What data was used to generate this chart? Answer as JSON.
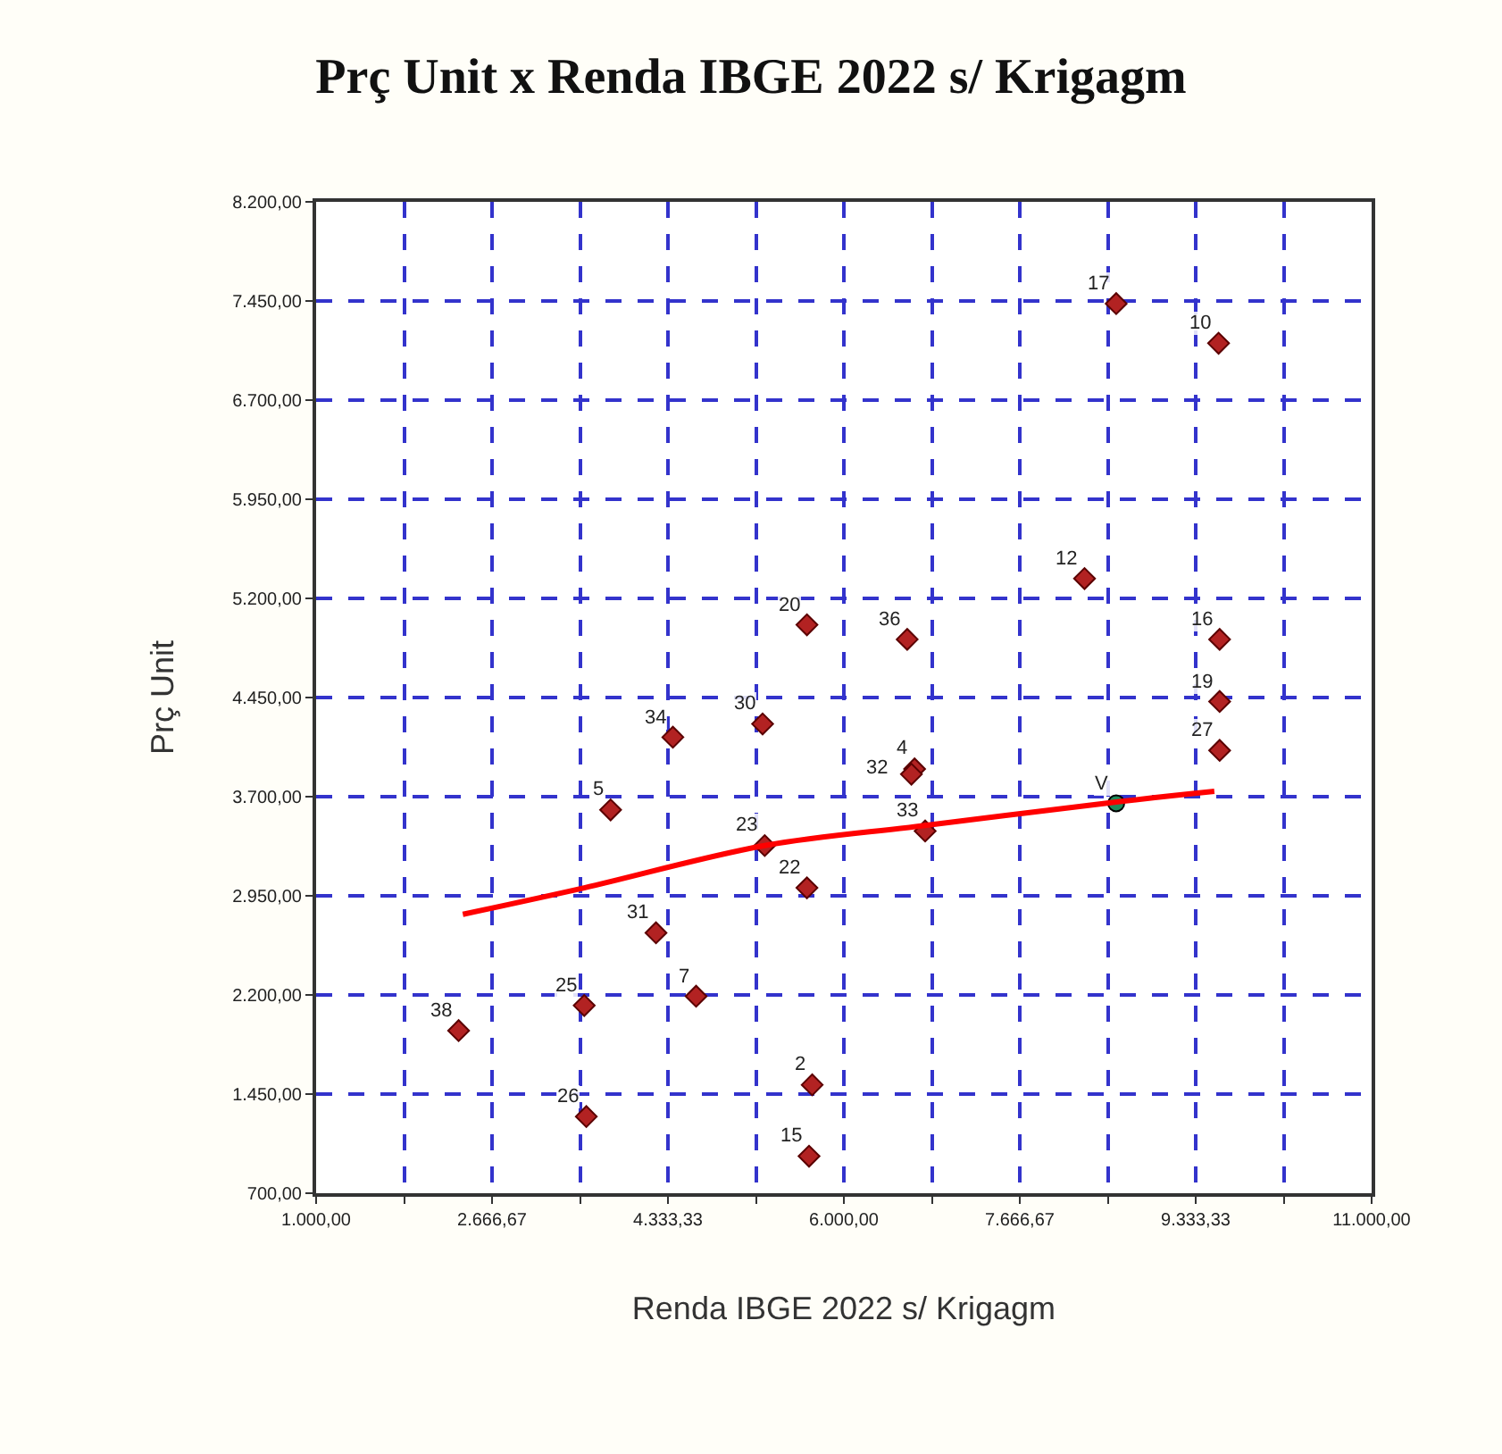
{
  "chart_data": {
    "type": "scatter",
    "title": "Prç Unit x Renda IBGE 2022 s/ Krigagm",
    "xlabel": "Renda IBGE 2022 s/ Krigagm",
    "ylabel": "Prç Unit",
    "xlim": [
      1000,
      11000
    ],
    "ylim": [
      700,
      8200
    ],
    "xticks": [
      {
        "value": 1000,
        "label": "1.000,00"
      },
      {
        "value": 1833.33,
        "label": null
      },
      {
        "value": 2666.67,
        "label": "2.666,67"
      },
      {
        "value": 3500,
        "label": null
      },
      {
        "value": 4333.33,
        "label": "4.333,33"
      },
      {
        "value": 5166.67,
        "label": null
      },
      {
        "value": 6000,
        "label": "6.000,00"
      },
      {
        "value": 6833.33,
        "label": null
      },
      {
        "value": 7666.67,
        "label": "7.666,67"
      },
      {
        "value": 8500,
        "label": null
      },
      {
        "value": 9333.33,
        "label": "9.333,33"
      },
      {
        "value": 10166.67,
        "label": null
      },
      {
        "value": 11000,
        "label": "11.000,00"
      }
    ],
    "yticks": [
      {
        "value": 700,
        "label": "700,00"
      },
      {
        "value": 1450,
        "label": "1.450,00"
      },
      {
        "value": 2200,
        "label": "2.200,00"
      },
      {
        "value": 2950,
        "label": "2.950,00"
      },
      {
        "value": 3700,
        "label": "3.700,00"
      },
      {
        "value": 4450,
        "label": "4.450,00"
      },
      {
        "value": 5200,
        "label": "5.200,00"
      },
      {
        "value": 5950,
        "label": "5.950,00"
      },
      {
        "value": 6700,
        "label": "6.700,00"
      },
      {
        "value": 7450,
        "label": "7.450,00"
      },
      {
        "value": 8200,
        "label": "8.200,00"
      }
    ],
    "grid": true,
    "series": [
      {
        "marker": "diamond",
        "color": "#b22222",
        "x": [
          5650,
          4380,
          5230,
          3790,
          8580,
          9550,
          8280,
          6600,
          9560,
          9560,
          9560,
          6670,
          6640,
          6770,
          5250,
          5650,
          4220,
          4600,
          3540,
          2350,
          3560,
          5700,
          5670
        ],
        "values": [
          5000,
          4150,
          4250,
          3600,
          7430,
          7130,
          5350,
          4890,
          4890,
          4420,
          4050,
          3910,
          3870,
          3440,
          3330,
          3010,
          2670,
          2190,
          2120,
          1930,
          1280,
          1520,
          980
        ]
      },
      {
        "marker": "circle",
        "color": "#1f8a5a",
        "x": [
          8580
        ],
        "values": [
          3650
        ]
      },
      {
        "type": "line",
        "marker": "none",
        "color": "#ff0000",
        "x": [
          2390,
          3540,
          5250,
          6750,
          8580,
          9510
        ],
        "values": [
          2810,
          3010,
          3330,
          3480,
          3660,
          3740
        ]
      }
    ],
    "annotations": [
      {
        "text": "20",
        "x": 5650,
        "y": 5000
      },
      {
        "text": "34",
        "x": 4380,
        "y": 4150
      },
      {
        "text": "30",
        "x": 5230,
        "y": 4250
      },
      {
        "text": "5",
        "x": 3790,
        "y": 3600
      },
      {
        "text": "17",
        "x": 8580,
        "y": 7430
      },
      {
        "text": "10",
        "x": 9550,
        "y": 7130
      },
      {
        "text": "12",
        "x": 8280,
        "y": 5350
      },
      {
        "text": "36",
        "x": 6600,
        "y": 4890
      },
      {
        "text": "16",
        "x": 9560,
        "y": 4890
      },
      {
        "text": "19",
        "x": 9560,
        "y": 4420
      },
      {
        "text": "27",
        "x": 9560,
        "y": 4050
      },
      {
        "text": "4",
        "x": 6670,
        "y": 3910
      },
      {
        "text": "32",
        "x": 6640,
        "y": 3870
      },
      {
        "text": "33",
        "x": 6770,
        "y": 3440
      },
      {
        "text": "23",
        "x": 5250,
        "y": 3330
      },
      {
        "text": "22",
        "x": 5650,
        "y": 3010
      },
      {
        "text": "31",
        "x": 4220,
        "y": 2670
      },
      {
        "text": "7",
        "x": 4600,
        "y": 2190
      },
      {
        "text": "25",
        "x": 3540,
        "y": 2120
      },
      {
        "text": "38",
        "x": 2350,
        "y": 1930
      },
      {
        "text": "26",
        "x": 3560,
        "y": 1280
      },
      {
        "text": "2",
        "x": 5700,
        "y": 1520
      },
      {
        "text": "15",
        "x": 5670,
        "y": 980
      },
      {
        "text": "V",
        "x": 8580,
        "y": 3650
      }
    ]
  }
}
